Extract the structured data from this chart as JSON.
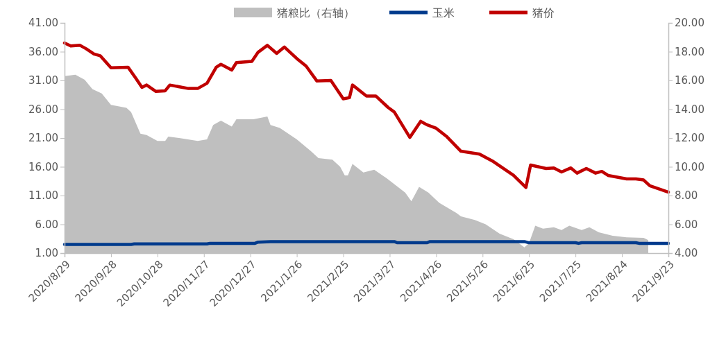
{
  "chart_data": {
    "type": "line",
    "legend": "top",
    "grid": false,
    "xlim": [
      "2020-08-29",
      "2021-09-23"
    ],
    "xticks": [
      {
        "value": "2020-08-29",
        "label": "2020/8/29"
      },
      {
        "value": "2020-09-28",
        "label": "2020/9/28"
      },
      {
        "value": "2020-10-28",
        "label": "2020/10/28"
      },
      {
        "value": "2020-11-27",
        "label": "2020/11/27"
      },
      {
        "value": "2020-12-27",
        "label": "2020/12/27"
      },
      {
        "value": "2021-01-26",
        "label": "2021/1/26"
      },
      {
        "value": "2021-02-25",
        "label": "2021/2/25"
      },
      {
        "value": "2021-03-27",
        "label": "2021/3/27"
      },
      {
        "value": "2021-04-26",
        "label": "2021/4/26"
      },
      {
        "value": "2021-05-26",
        "label": "2021/5/26"
      },
      {
        "value": "2021-06-25",
        "label": "2021/6/25"
      },
      {
        "value": "2021-07-25",
        "label": "2021/7/25"
      },
      {
        "value": "2021-08-24",
        "label": "2021/8/24"
      },
      {
        "value": "2021-09-23",
        "label": "2021/9/23"
      }
    ],
    "ylim": [
      1,
      41
    ],
    "yticks": [
      {
        "value": 1,
        "label": "1.00"
      },
      {
        "value": 6,
        "label": "6.00"
      },
      {
        "value": 11,
        "label": "11.00"
      },
      {
        "value": 16,
        "label": "16.00"
      },
      {
        "value": 21,
        "label": "21.00"
      },
      {
        "value": 26,
        "label": "26.00"
      },
      {
        "value": 31,
        "label": "31.00"
      },
      {
        "value": 36,
        "label": "36.00"
      },
      {
        "value": 41,
        "label": "41.00"
      }
    ],
    "y2lim": [
      4,
      20
    ],
    "y2ticks": [
      {
        "value": 4,
        "label": "4.00"
      },
      {
        "value": 6,
        "label": "6.00"
      },
      {
        "value": 8,
        "label": "8.00"
      },
      {
        "value": 10,
        "label": "10.00"
      },
      {
        "value": 12,
        "label": "12.00"
      },
      {
        "value": 14,
        "label": "14.00"
      },
      {
        "value": 16,
        "label": "16.00"
      },
      {
        "value": 18,
        "label": "18.00"
      },
      {
        "value": 20,
        "label": "20.00"
      }
    ],
    "series": [
      {
        "name": "猪粮比（右轴）",
        "type": "area",
        "axis": "y2",
        "color": "#bfbfbf",
        "x": [
          "2020-08-29",
          "2020-09-05",
          "2020-09-11",
          "2020-09-16",
          "2020-09-22",
          "2020-09-28",
          "2020-10-08",
          "2020-10-11",
          "2020-10-17",
          "2020-10-21",
          "2020-10-28",
          "2020-11-02",
          "2020-11-04",
          "2020-11-11",
          "2020-11-23",
          "2020-11-29",
          "2020-12-03",
          "2020-12-08",
          "2020-12-15",
          "2020-12-18",
          "2020-12-29",
          "2021-01-07",
          "2021-01-09",
          "2021-01-15",
          "2021-01-26",
          "2021-02-04",
          "2021-02-09",
          "2021-02-18",
          "2021-02-23",
          "2021-02-26",
          "2021-02-28",
          "2021-03-03",
          "2021-03-10",
          "2021-03-17",
          "2021-03-25",
          "2021-04-06",
          "2021-04-10",
          "2021-04-15",
          "2021-04-21",
          "2021-04-28",
          "2021-05-09",
          "2021-05-12",
          "2021-05-21",
          "2021-05-28",
          "2021-06-06",
          "2021-06-15",
          "2021-06-22",
          "2021-06-25",
          "2021-06-29",
          "2021-07-04",
          "2021-07-11",
          "2021-07-16",
          "2021-07-21",
          "2021-07-29",
          "2021-08-03",
          "2021-08-09",
          "2021-08-18",
          "2021-08-27",
          "2021-09-07",
          "2021-09-10"
        ],
        "values": [
          16.3,
          16.4,
          16.05,
          15.4,
          15.1,
          14.3,
          14.1,
          13.8,
          12.3,
          12.2,
          11.8,
          11.8,
          12.1,
          12.0,
          11.8,
          11.9,
          12.9,
          13.2,
          12.8,
          13.3,
          13.3,
          13.5,
          12.9,
          12.7,
          11.9,
          11.1,
          10.6,
          10.5,
          10.0,
          9.4,
          9.4,
          10.2,
          9.6,
          9.8,
          9.2,
          8.2,
          7.6,
          8.6,
          8.2,
          7.5,
          6.8,
          6.55,
          6.3,
          6.0,
          5.35,
          4.96,
          4.4,
          4.7,
          5.9,
          5.7,
          5.8,
          5.6,
          5.9,
          5.6,
          5.8,
          5.45,
          5.2,
          5.1,
          5.06,
          4.9
        ]
      },
      {
        "name": "玉米",
        "color": "#003a8c",
        "x": [
          "2020-08-29",
          "2020-10-11",
          "2020-10-13",
          "2020-11-29",
          "2020-12-01",
          "2020-12-30",
          "2021-01-01",
          "2021-01-09",
          "2021-03-30",
          "2021-04-01",
          "2021-04-20",
          "2021-04-22",
          "2021-06-22",
          "2021-06-25",
          "2021-07-25",
          "2021-07-27",
          "2021-07-29",
          "2021-09-02",
          "2021-09-04",
          "2021-09-23"
        ],
        "values": [
          2.5,
          2.5,
          2.6,
          2.6,
          2.7,
          2.7,
          2.9,
          3.0,
          3.0,
          2.8,
          2.8,
          3.0,
          3.0,
          2.8,
          2.8,
          2.7,
          2.8,
          2.8,
          2.7,
          2.7
        ]
      },
      {
        "name": "猪价",
        "color": "#c00000",
        "x": [
          "2020-08-29",
          "2020-09-02",
          "2020-09-08",
          "2020-09-12",
          "2020-09-17",
          "2020-09-21",
          "2020-09-28",
          "2020-10-09",
          "2020-10-14",
          "2020-10-18",
          "2020-10-21",
          "2020-10-27",
          "2020-11-02",
          "2020-11-05",
          "2020-11-17",
          "2020-11-23",
          "2020-11-29",
          "2020-12-05",
          "2020-12-08",
          "2020-12-15",
          "2020-12-18",
          "2020-12-28",
          "2021-01-01",
          "2021-01-07",
          "2021-01-13",
          "2021-01-18",
          "2021-01-26",
          "2021-02-01",
          "2021-02-08",
          "2021-02-17",
          "2021-02-25",
          "2021-03-01",
          "2021-03-03",
          "2021-03-12",
          "2021-03-18",
          "2021-03-26",
          "2021-03-30",
          "2021-04-09",
          "2021-04-16",
          "2021-04-20",
          "2021-04-26",
          "2021-05-03",
          "2021-05-12",
          "2021-05-24",
          "2021-06-02",
          "2021-06-15",
          "2021-06-23",
          "2021-06-26",
          "2021-07-06",
          "2021-07-11",
          "2021-07-16",
          "2021-07-22",
          "2021-07-26",
          "2021-08-01",
          "2021-08-07",
          "2021-08-11",
          "2021-08-15",
          "2021-08-27",
          "2021-09-02",
          "2021-09-07",
          "2021-09-11",
          "2021-09-23"
        ],
        "values": [
          37.5,
          37.0,
          37.1,
          36.5,
          35.6,
          35.3,
          33.2,
          33.3,
          31.4,
          29.8,
          30.2,
          29.1,
          29.2,
          30.2,
          29.6,
          29.6,
          30.5,
          33.3,
          33.8,
          32.8,
          34.1,
          34.3,
          35.9,
          37.1,
          35.7,
          36.8,
          34.8,
          33.5,
          30.9,
          31.0,
          27.8,
          28.0,
          30.2,
          28.3,
          28.3,
          26.3,
          25.5,
          21.1,
          23.9,
          23.3,
          22.7,
          21.2,
          18.7,
          18.2,
          16.9,
          14.5,
          12.4,
          16.3,
          15.7,
          15.8,
          15.1,
          15.8,
          14.9,
          15.7,
          14.9,
          15.2,
          14.5,
          13.9,
          13.9,
          13.7,
          12.7,
          11.6
        ]
      }
    ]
  }
}
